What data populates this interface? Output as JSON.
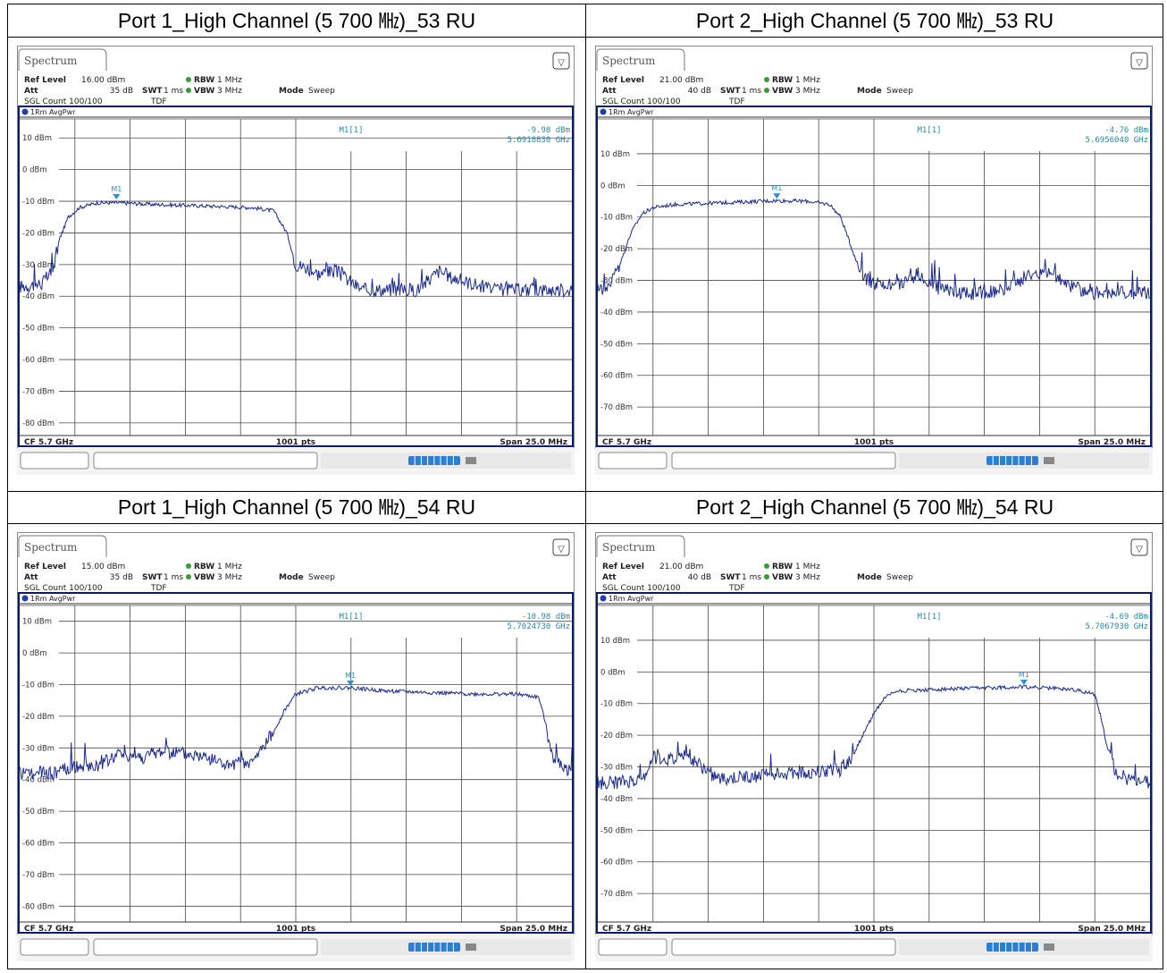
{
  "colors": {
    "trace": "#1c2a8c",
    "marker": "#2a8fd0",
    "readout": "#2a8aa0",
    "grid": "#4a4a4a",
    "frame": "#0a1a6a"
  },
  "panels": [
    {
      "title": "Port 1_High Channel (5 700 ㎒)_53 RU",
      "tab": "Spectrum",
      "ref_level_label": "Ref Level",
      "ref_level": "16.00 dBm",
      "att_label": "Att",
      "att": "35 dB",
      "sgl_count": "SGL Count 100/100",
      "rbw_label": "RBW",
      "rbw": "1 MHz",
      "swt_label": "SWT",
      "swt": "1 ms",
      "vbw_label": "VBW",
      "vbw": "3 MHz",
      "mode_label": "Mode",
      "mode": "Sweep",
      "tdf": "TDF",
      "trace_label": "1Rm AvgPwr",
      "marker_name": "M1[1]",
      "marker_level": "-9.98 dBm",
      "marker_freq": "5.6918830 GHz",
      "marker_tag": "M1",
      "footer_cf": "CF 5.7 GHz",
      "footer_pts": "1001 pts",
      "footer_span": "Span 25.0 MHz",
      "chart_data": {
        "type": "line",
        "ylabel_ticks": [
          "10 dBm",
          "0 dBm",
          "-10 dBm",
          "-20 dBm",
          "-30 dBm",
          "-40 dBm",
          "-50 dBm",
          "-60 dBm",
          "-70 dBm",
          "-80 dBm"
        ],
        "ref_level": 16.0,
        "ylim": [
          -84,
          16
        ],
        "xlim": [
          5.6875,
          5.7125
        ],
        "x_unit": "GHz",
        "grid": true,
        "marker": {
          "x": 5.691883,
          "y": -9.98
        },
        "series": [
          {
            "values_x": [
              5.6875,
              5.688,
              5.6885,
              5.689,
              5.6893,
              5.6897,
              5.6902,
              5.691,
              5.692,
              5.6935,
              5.696,
              5.698,
              5.699,
              5.6996,
              5.7,
              5.7005,
              5.701,
              5.7018,
              5.703,
              5.704,
              5.7055,
              5.706,
              5.7065,
              5.707,
              5.708,
              5.709,
              5.71,
              5.711,
              5.7125
            ],
            "values_y": [
              -37,
              -36.5,
              -36,
              -32,
              -22,
              -15,
              -12,
              -10.5,
              -10.5,
              -11,
              -11.5,
              -12,
              -13,
              -20,
              -30,
              -31,
              -33,
              -32,
              -38,
              -38,
              -38,
              -35,
              -32,
              -34,
              -36,
              -38,
              -38,
              -38,
              -38
            ]
          }
        ]
      }
    },
    {
      "title": "Port 2_High Channel (5 700 ㎒)_53 RU",
      "tab": "Spectrum",
      "ref_level_label": "Ref Level",
      "ref_level": "21.00 dBm",
      "att_label": "Att",
      "att": "40 dB",
      "sgl_count": "SGL Count 100/100",
      "rbw_label": "RBW",
      "rbw": "1 MHz",
      "swt_label": "SWT",
      "swt": "1 ms",
      "vbw_label": "VBW",
      "vbw": "3 MHz",
      "mode_label": "Mode",
      "mode": "Sweep",
      "tdf": "TDF",
      "trace_label": "1Rm AvgPwr",
      "marker_name": "M1[1]",
      "marker_level": "-4.76 dBm",
      "marker_freq": "5.6956040 GHz",
      "marker_tag": "M1",
      "footer_cf": "CF 5.7 GHz",
      "footer_pts": "1001 pts",
      "footer_span": "Span 25.0 MHz",
      "chart_data": {
        "type": "line",
        "ylabel_ticks": [
          "10 dBm",
          "0 dBm",
          "-10 dBm",
          "-20 dBm",
          "-30 dBm",
          "-40 dBm",
          "-50 dBm",
          "-60 dBm",
          "-70 dBm"
        ],
        "ref_level": 21.0,
        "ylim": [
          -79,
          21
        ],
        "xlim": [
          5.6875,
          5.7125
        ],
        "x_unit": "GHz",
        "grid": true,
        "marker": {
          "x": 5.695604,
          "y": -4.76
        },
        "series": [
          {
            "values_x": [
              5.6875,
              5.688,
              5.6885,
              5.689,
              5.6895,
              5.69,
              5.691,
              5.693,
              5.6956,
              5.697,
              5.698,
              5.6985,
              5.699,
              5.6995,
              5.7,
              5.701,
              5.702,
              5.703,
              5.704,
              5.705,
              5.706,
              5.707,
              5.708,
              5.709,
              5.71,
              5.711,
              5.7125
            ],
            "values_y": [
              -33,
              -32,
              -25,
              -15,
              -9,
              -7,
              -6,
              -5.5,
              -4.8,
              -5,
              -6,
              -10,
              -20,
              -29,
              -31,
              -32,
              -28,
              -33,
              -34,
              -34,
              -33,
              -28,
              -28,
              -32,
              -34,
              -34,
              -34
            ]
          }
        ]
      }
    },
    {
      "title": "Port 1_High Channel (5 700 ㎒)_54 RU",
      "tab": "Spectrum",
      "ref_level_label": "Ref Level",
      "ref_level": "15.00 dBm",
      "att_label": "Att",
      "att": "35 dB",
      "sgl_count": "SGL Count 100/100",
      "rbw_label": "RBW",
      "rbw": "1 MHz",
      "swt_label": "SWT",
      "swt": "1 ms",
      "vbw_label": "VBW",
      "vbw": "3 MHz",
      "mode_label": "Mode",
      "mode": "Sweep",
      "tdf": "TDF",
      "trace_label": "1Rm AvgPwr",
      "marker_name": "M1[1]",
      "marker_level": "-10.98 dBm",
      "marker_freq": "5.7024730 GHz",
      "marker_tag": "M1",
      "footer_cf": "CF 5.7 GHz",
      "footer_pts": "1001 pts",
      "footer_span": "Span 25.0 MHz",
      "chart_data": {
        "type": "line",
        "ylabel_ticks": [
          "10 dBm",
          "0 dBm",
          "-10 dBm",
          "-20 dBm",
          "-30 dBm",
          "-40 dBm",
          "-50 dBm",
          "-60 dBm",
          "-70 dBm",
          "-80 dBm"
        ],
        "ref_level": 15.0,
        "ylim": [
          -85,
          15
        ],
        "xlim": [
          5.6875,
          5.7125
        ],
        "x_unit": "GHz",
        "grid": true,
        "marker": {
          "x": 5.702473,
          "y": -10.98
        },
        "series": [
          {
            "values_x": [
              5.6875,
              5.689,
              5.69,
              5.691,
              5.692,
              5.693,
              5.694,
              5.695,
              5.696,
              5.697,
              5.698,
              5.6985,
              5.699,
              5.6995,
              5.7,
              5.701,
              5.7025,
              5.704,
              5.706,
              5.708,
              5.71,
              5.711,
              5.7113,
              5.7116,
              5.712,
              5.7125
            ],
            "values_y": [
              -38,
              -38,
              -36,
              -36,
              -32,
              -33,
              -31,
              -32,
              -33,
              -36,
              -35,
              -30,
              -25,
              -18,
              -13,
              -11,
              -11,
              -12,
              -12.5,
              -13,
              -13,
              -14,
              -22,
              -32,
              -36,
              -37
            ]
          }
        ]
      }
    },
    {
      "title": "Port 2_High Channel (5 700 ㎒)_54 RU",
      "tab": "Spectrum",
      "ref_level_label": "Ref Level",
      "ref_level": "21.00 dBm",
      "att_label": "Att",
      "att": "40 dB",
      "sgl_count": "SGL Count 100/100",
      "rbw_label": "RBW",
      "rbw": "1 MHz",
      "swt_label": "SWT",
      "swt": "1 ms",
      "vbw_label": "VBW",
      "vbw": "3 MHz",
      "mode_label": "Mode",
      "mode": "Sweep",
      "tdf": "TDF",
      "trace_label": "1Rm AvgPwr",
      "marker_name": "M1[1]",
      "marker_level": "-4.69 dBm",
      "marker_freq": "5.7067930 GHz",
      "marker_tag": "M1",
      "footer_cf": "CF 5.7 GHz",
      "footer_pts": "1001 pts",
      "footer_span": "Span 25.0 MHz",
      "chart_data": {
        "type": "line",
        "ylabel_ticks": [
          "10 dBm",
          "0 dBm",
          "-10 dBm",
          "-20 dBm",
          "-30 dBm",
          "-40 dBm",
          "-50 dBm",
          "-60 dBm",
          "-70 dBm"
        ],
        "ref_level": 21.0,
        "ylim": [
          -79,
          21
        ],
        "xlim": [
          5.6875,
          5.7125
        ],
        "x_unit": "GHz",
        "grid": true,
        "marker": {
          "x": 5.706793,
          "y": -4.69
        },
        "series": [
          {
            "values_x": [
              5.6875,
              5.6885,
              5.6895,
              5.69,
              5.691,
              5.6915,
              5.692,
              5.693,
              5.6945,
              5.696,
              5.6985,
              5.699,
              5.6995,
              5.7,
              5.7005,
              5.701,
              5.703,
              5.7068,
              5.709,
              5.71,
              5.7103,
              5.7106,
              5.711,
              5.7116,
              5.7125
            ],
            "values_y": [
              -35,
              -35,
              -34,
              -27,
              -28,
              -25,
              -29,
              -34,
              -33,
              -32,
              -31,
              -27,
              -20,
              -13,
              -8,
              -6,
              -5.5,
              -4.7,
              -5.5,
              -7,
              -15,
              -25,
              -32,
              -34,
              -35
            ]
          }
        ]
      }
    }
  ]
}
